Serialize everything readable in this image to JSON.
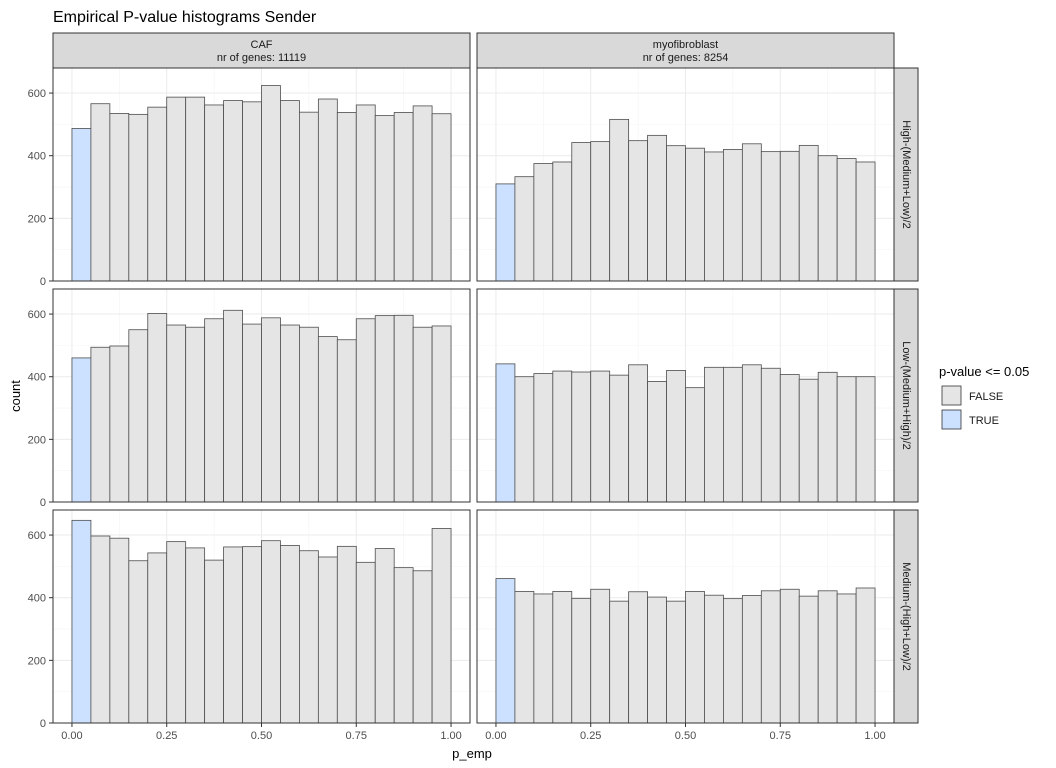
{
  "title": "Empirical P-value histograms Sender",
  "legend": {
    "title": "p-value <= 0.05",
    "items": [
      {
        "label": "FALSE",
        "color": "#e5e5e5"
      },
      {
        "label": "TRUE",
        "color": "#cce0ff"
      }
    ]
  },
  "chart_data": {
    "type": "bar",
    "title": "Empirical P-value histograms Sender",
    "xlabel": "p_emp",
    "ylabel": "count",
    "xlim": [
      -0.05,
      1.05
    ],
    "ylim": [
      0,
      680
    ],
    "x_ticks": [
      "0.00",
      "0.25",
      "0.50",
      "0.75",
      "1.00"
    ],
    "y_ticks": [
      "0",
      "200",
      "400",
      "600"
    ],
    "grid": true,
    "legend_position": "right",
    "bin_width": 0.05,
    "bin_starts": [
      0.0,
      0.05,
      0.1,
      0.15,
      0.2,
      0.25,
      0.3,
      0.35,
      0.4,
      0.45,
      0.5,
      0.55,
      0.6,
      0.65,
      0.7,
      0.75,
      0.8,
      0.85,
      0.9,
      0.95
    ],
    "columns": [
      {
        "label": "CAF",
        "sublabel": "nr of genes: 11119"
      },
      {
        "label": "myofibroblast",
        "sublabel": "nr of genes: 8254"
      }
    ],
    "rows": [
      "High-(Medium+Low)/2",
      "Low-(Medium+High)/2",
      "Medium-(High+Low)/2"
    ],
    "panels": [
      {
        "column": "CAF",
        "row": "High-(Medium+Low)/2",
        "values": [
          487,
          566,
          535,
          532,
          555,
          587,
          587,
          562,
          576,
          572,
          624,
          576,
          539,
          581,
          538,
          562,
          528,
          538,
          559,
          534
        ]
      },
      {
        "column": "myofibroblast",
        "row": "High-(Medium+Low)/2",
        "values": [
          310,
          333,
          375,
          380,
          442,
          445,
          516,
          448,
          465,
          432,
          424,
          412,
          420,
          438,
          413,
          414,
          433,
          400,
          391,
          380
        ]
      },
      {
        "column": "CAF",
        "row": "Low-(Medium+High)/2",
        "values": [
          460,
          494,
          498,
          550,
          602,
          565,
          558,
          585,
          612,
          568,
          588,
          565,
          558,
          528,
          518,
          585,
          595,
          596,
          558,
          562
        ]
      },
      {
        "column": "myofibroblast",
        "row": "Low-(Medium+High)/2",
        "values": [
          441,
          400,
          410,
          418,
          415,
          418,
          405,
          438,
          385,
          420,
          365,
          430,
          430,
          438,
          427,
          407,
          392,
          414,
          400,
          400
        ]
      },
      {
        "column": "CAF",
        "row": "Medium-(High+Low)/2",
        "values": [
          647,
          597,
          590,
          518,
          543,
          579,
          559,
          520,
          562,
          563,
          582,
          567,
          550,
          530,
          564,
          513,
          557,
          496,
          486,
          621
        ]
      },
      {
        "column": "myofibroblast",
        "row": "Medium-(High+Low)/2",
        "values": [
          461,
          420,
          412,
          420,
          398,
          427,
          389,
          419,
          402,
          389,
          420,
          408,
          397,
          407,
          422,
          427,
          405,
          422,
          412,
          431
        ]
      }
    ]
  }
}
